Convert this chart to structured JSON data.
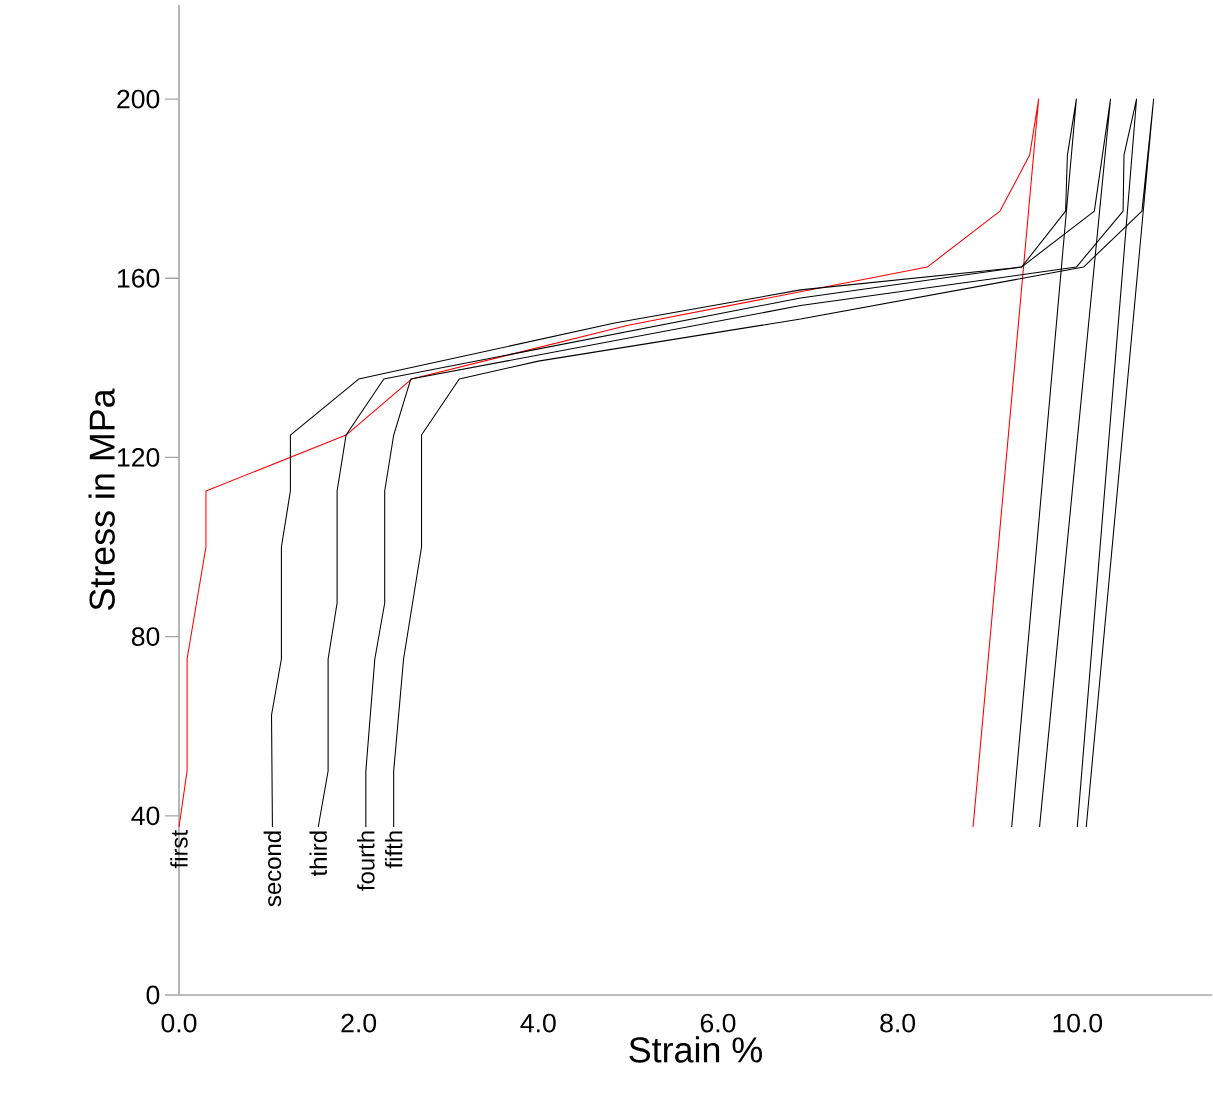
{
  "chart_data": {
    "type": "line",
    "xlabel": "Strain %",
    "ylabel": "Stress in MPa",
    "xlim": [
      0,
      11.5
    ],
    "ylim": [
      0,
      221
    ],
    "xticks": [
      {
        "value": 0,
        "label": "0.0"
      },
      {
        "value": 2,
        "label": "2.0"
      },
      {
        "value": 4,
        "label": "4.0"
      },
      {
        "value": 6,
        "label": "6.0"
      },
      {
        "value": 8,
        "label": "8.0"
      },
      {
        "value": 10,
        "label": "10.0"
      }
    ],
    "yticks": [
      0,
      40,
      80,
      120,
      160,
      200
    ],
    "series": [
      {
        "name": "first",
        "color": "#ff0000",
        "x": [
          0,
          0.09,
          0.09,
          0.3,
          0.3,
          1.86,
          2.59,
          5.0,
          8.33,
          9.14,
          9.47,
          9.57,
          8.84
        ],
        "values": [
          37.5,
          50,
          75,
          100,
          112.5,
          125,
          137.5,
          149.5,
          162.5,
          175,
          187.5,
          200,
          37.5
        ]
      },
      {
        "name": "second",
        "color": "#000000",
        "x": [
          1.04,
          1.03,
          1.14,
          1.14,
          1.24,
          1.24,
          2.0,
          4.85,
          6.92,
          9.38,
          9.87,
          9.89,
          9.99,
          9.27
        ],
        "values": [
          37.5,
          62.5,
          75,
          100,
          112.5,
          125,
          137.5,
          150,
          157.4,
          162.5,
          175,
          187.5,
          200,
          37.5
        ]
      },
      {
        "name": "third",
        "color": "#000000",
        "x": [
          1.55,
          1.66,
          1.66,
          1.76,
          1.76,
          1.86,
          2.28,
          6.92,
          9.38,
          10.19,
          10.37,
          9.58
        ],
        "values": [
          37.5,
          50,
          75,
          87.5,
          112.5,
          125,
          137.5,
          155.6,
          162.5,
          175,
          200,
          37.5
        ]
      },
      {
        "name": "fourth",
        "color": "#000000",
        "x": [
          2.08,
          2.08,
          2.18,
          2.29,
          2.29,
          2.39,
          2.58,
          6.92,
          9.99,
          10.51,
          10.52,
          10.66,
          10.0
        ],
        "values": [
          37.5,
          50,
          75,
          87.5,
          112.5,
          125,
          137.5,
          153.9,
          162.5,
          175,
          187.5,
          200,
          37.5
        ]
      },
      {
        "name": "fifth",
        "color": "#000000",
        "x": [
          2.39,
          2.39,
          2.5,
          2.7,
          2.7,
          3.12,
          4.0,
          6.92,
          10.07,
          10.72,
          10.85,
          10.1
        ],
        "values": [
          37.5,
          50,
          75,
          100,
          125,
          137.5,
          141.5,
          150.9,
          162.5,
          175,
          200,
          37.5
        ]
      }
    ]
  }
}
